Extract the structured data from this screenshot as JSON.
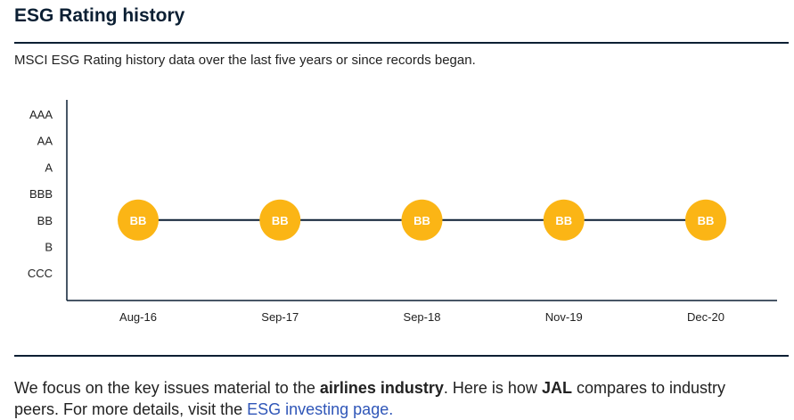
{
  "header": {
    "title": "ESG Rating history",
    "subtitle": "MSCI ESG Rating history data over the last five years or since records began."
  },
  "colors": {
    "marker": "#fbb515",
    "line": "#0b1f33",
    "axis": "#0b1f33",
    "link": "#2f56b8"
  },
  "chart_data": {
    "type": "line",
    "title": "",
    "xlabel": "",
    "ylabel": "",
    "y_categories": [
      "AAA",
      "AA",
      "A",
      "BBB",
      "BB",
      "B",
      "CCC"
    ],
    "categories": [
      "Aug-16",
      "Sep-17",
      "Sep-18",
      "Nov-19",
      "Dec-20"
    ],
    "series": [
      {
        "values": [
          "BB",
          "BB",
          "BB",
          "BB",
          "BB"
        ]
      }
    ],
    "grid": false
  },
  "footer": {
    "text_1": "We focus on the key issues material to the ",
    "industry": "airlines industry",
    "text_2": ". Here is how ",
    "company": "JAL",
    "text_3": " compares to industry peers. For more details, visit the ",
    "link_label": "ESG investing page."
  }
}
